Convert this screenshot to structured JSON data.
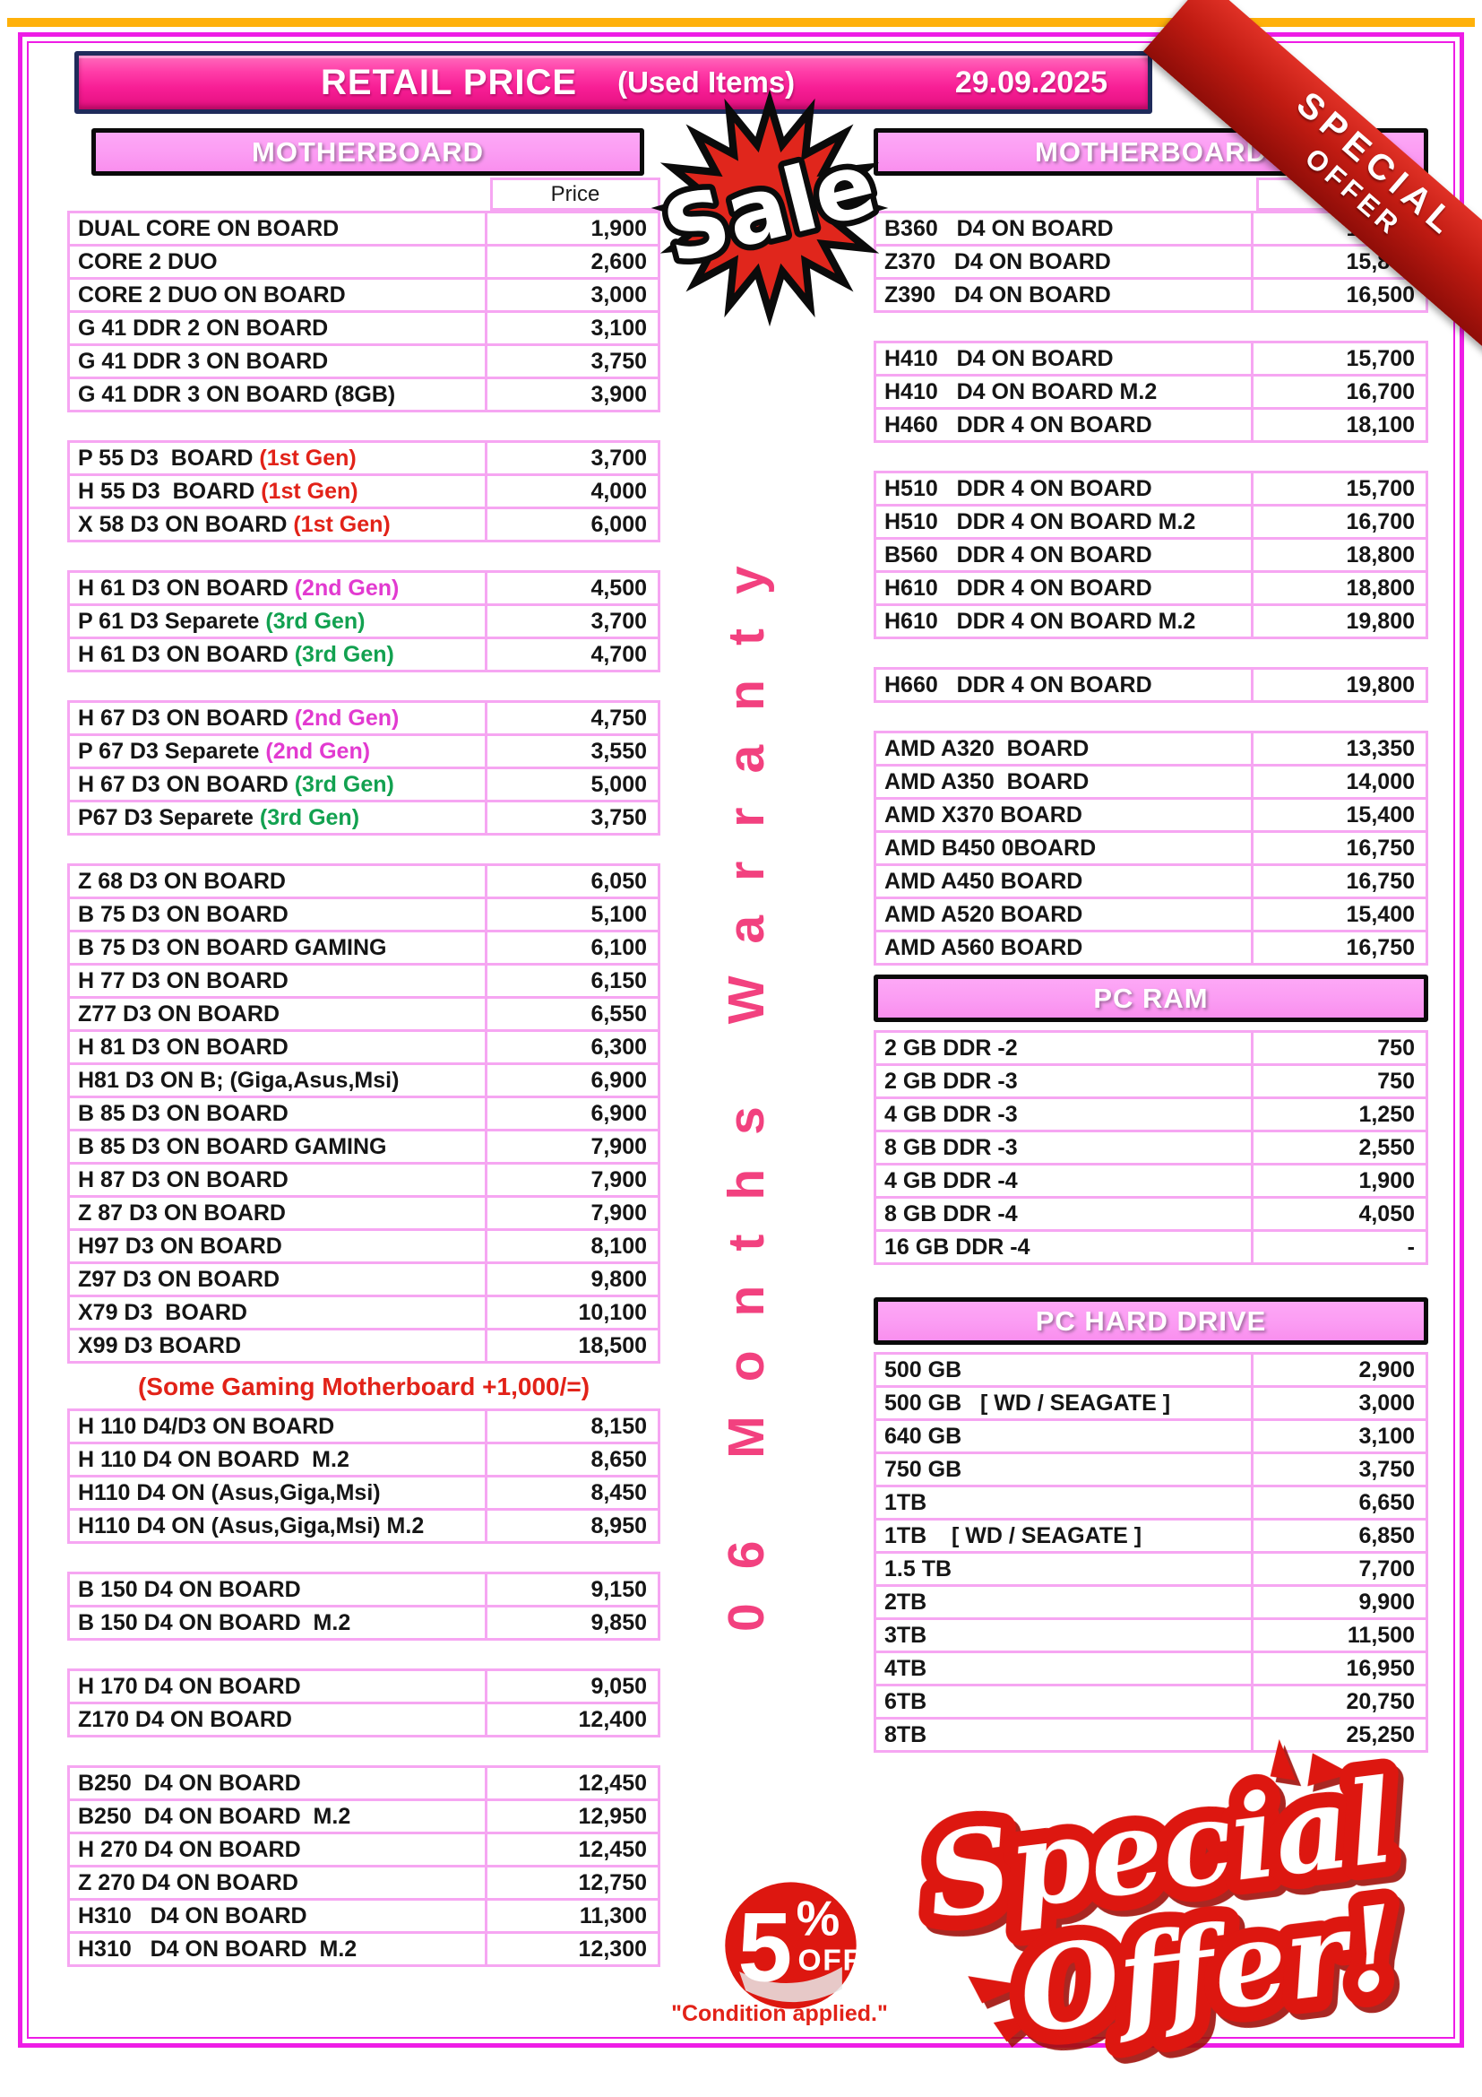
{
  "colors": {
    "red": "#e22218",
    "magenta": "#e23ad0",
    "green": "#12a150",
    "accent_pink": "#f71e95",
    "row_border_pink": "#f6a6f2",
    "section_header_pink": "#fb9cf3",
    "frame_magenta": "#ee1ce6",
    "top_line_orange": "#ffb10a",
    "warranty_pink": "#f2417f",
    "ribbon_red": "#c01b12",
    "badge_red": "#dd1710"
  },
  "page": {
    "title": "RETAIL PRICE",
    "subtitle": "(Used Items)",
    "date": "29.09.2025",
    "ribbon_line1": "SPECIAL",
    "ribbon_line2": "OFFER",
    "sale_text": "Sale",
    "warranty_text": "06 Months Warranty",
    "discount_number": "5",
    "discount_percent": "%",
    "discount_off": "OFF",
    "discount_condition": "\"Condition applied.\"",
    "special_offer_line1": "Special",
    "special_offer_line2": "Offer!"
  },
  "left": {
    "title": "MOTHERBOARD",
    "price_header": "Price",
    "note": "(Some Gaming Motherboard +1,000/=)",
    "groups_a": [
      {
        "rows": [
          {
            "name": "DUAL CORE ON BOARD",
            "tag": "",
            "tag_color": "",
            "price": "1,900"
          },
          {
            "name": "CORE 2 DUO",
            "tag": "",
            "tag_color": "",
            "price": "2,600"
          },
          {
            "name": "CORE 2 DUO ON BOARD",
            "tag": "",
            "tag_color": "",
            "price": "3,000"
          },
          {
            "name": "G 41 DDR 2 ON BOARD",
            "tag": "",
            "tag_color": "",
            "price": "3,100"
          },
          {
            "name": "G 41 DDR 3 ON BOARD",
            "tag": "",
            "tag_color": "",
            "price": "3,750"
          },
          {
            "name": "G 41 DDR 3 ON BOARD (8GB)",
            "tag": "",
            "tag_color": "",
            "price": "3,900"
          }
        ]
      },
      {
        "rows": [
          {
            "name": "P 55 D3  BOARD ",
            "tag": "(1st Gen)",
            "tag_color": "red",
            "price": "3,700"
          },
          {
            "name": "H 55 D3  BOARD ",
            "tag": "(1st Gen)",
            "tag_color": "red",
            "price": "4,000"
          },
          {
            "name": "X 58 D3 ON BOARD ",
            "tag": "(1st Gen)",
            "tag_color": "red",
            "price": "6,000"
          }
        ]
      },
      {
        "rows": [
          {
            "name": "H 61 D3 ON BOARD ",
            "tag": "(2nd Gen)",
            "tag_color": "magenta",
            "price": "4,500"
          },
          {
            "name": "P 61 D3 Separete ",
            "tag": "(3rd Gen)",
            "tag_color": "green",
            "price": "3,700"
          },
          {
            "name": "H 61 D3 ON BOARD ",
            "tag": "(3rd Gen)",
            "tag_color": "green",
            "price": "4,700"
          }
        ]
      },
      {
        "rows": [
          {
            "name": "H 67 D3 ON BOARD ",
            "tag": "(2nd Gen)",
            "tag_color": "magenta",
            "price": "4,750"
          },
          {
            "name": "P 67 D3 Separete ",
            "tag": "(2nd Gen)",
            "tag_color": "magenta",
            "price": "3,550"
          },
          {
            "name": "H 67 D3 ON BOARD ",
            "tag": "(3rd Gen)",
            "tag_color": "green",
            "price": "5,000"
          },
          {
            "name": "P67 D3 Separete ",
            "tag": "(3rd Gen)",
            "tag_color": "green",
            "price": "3,750"
          }
        ]
      },
      {
        "rows": [
          {
            "name": "Z 68 D3 ON BOARD",
            "tag": "",
            "tag_color": "",
            "price": "6,050"
          },
          {
            "name": "B 75 D3 ON BOARD",
            "tag": "",
            "tag_color": "",
            "price": "5,100"
          },
          {
            "name": "B 75 D3 ON BOARD GAMING",
            "tag": "",
            "tag_color": "",
            "price": "6,100"
          },
          {
            "name": "H 77 D3 ON BOARD",
            "tag": "",
            "tag_color": "",
            "price": "6,150"
          },
          {
            "name": "Z77 D3 ON BOARD",
            "tag": "",
            "tag_color": "",
            "price": "6,550"
          },
          {
            "name": "H 81 D3 ON BOARD",
            "tag": "",
            "tag_color": "",
            "price": "6,300"
          },
          {
            "name": "H81 D3 ON B; (Giga,Asus,Msi)",
            "tag": "",
            "tag_color": "",
            "price": "6,900"
          },
          {
            "name": "B 85 D3 ON BOARD",
            "tag": "",
            "tag_color": "",
            "price": "6,900"
          },
          {
            "name": "B 85 D3 ON BOARD GAMING",
            "tag": "",
            "tag_color": "",
            "price": "7,900"
          },
          {
            "name": "H 87 D3 ON BOARD",
            "tag": "",
            "tag_color": "",
            "price": "7,900"
          },
          {
            "name": "Z 87 D3 ON BOARD",
            "tag": "",
            "tag_color": "",
            "price": "7,900"
          },
          {
            "name": "H97 D3 ON BOARD",
            "tag": "",
            "tag_color": "",
            "price": "8,100"
          },
          {
            "name": "Z97 D3 ON BOARD",
            "tag": "",
            "tag_color": "",
            "price": "9,800"
          },
          {
            "name": "X79 D3  BOARD",
            "tag": "",
            "tag_color": "",
            "price": "10,100"
          },
          {
            "name": "X99 D3 BOARD",
            "tag": "",
            "tag_color": "",
            "price": "18,500"
          }
        ]
      }
    ],
    "groups_b": [
      {
        "rows": [
          {
            "name": "H 110 D4/D3 ON BOARD",
            "tag": "",
            "tag_color": "",
            "price": "8,150"
          },
          {
            "name": "H 110 D4 ON BOARD  M.2",
            "tag": "",
            "tag_color": "",
            "price": "8,650"
          },
          {
            "name": "H110 D4 ON (Asus,Giga,Msi)",
            "tag": "",
            "tag_color": "",
            "price": "8,450"
          },
          {
            "name": "H110 D4 ON (Asus,Giga,Msi) M.2",
            "tag": "",
            "tag_color": "",
            "price": "8,950"
          }
        ]
      },
      {
        "rows": [
          {
            "name": "B 150 D4 ON BOARD",
            "tag": "",
            "tag_color": "",
            "price": "9,150"
          },
          {
            "name": "B 150 D4 ON BOARD  M.2",
            "tag": "",
            "tag_color": "",
            "price": "9,850"
          }
        ]
      },
      {
        "rows": [
          {
            "name": "H 170 D4 ON BOARD",
            "tag": "",
            "tag_color": "",
            "price": "9,050"
          },
          {
            "name": "Z170 D4 ON BOARD",
            "tag": "",
            "tag_color": "",
            "price": "12,400"
          }
        ]
      },
      {
        "rows": [
          {
            "name": "B250  D4 ON BOARD",
            "tag": "",
            "tag_color": "",
            "price": "12,450"
          },
          {
            "name": "B250  D4 ON BOARD  M.2",
            "tag": "",
            "tag_color": "",
            "price": "12,950"
          },
          {
            "name": "H 270 D4 ON BOARD",
            "tag": "",
            "tag_color": "",
            "price": "12,450"
          },
          {
            "name": "Z 270 D4 ON BOARD",
            "tag": "",
            "tag_color": "",
            "price": "12,750"
          },
          {
            "name": "H310   D4 ON BOARD",
            "tag": "",
            "tag_color": "",
            "price": "11,300"
          },
          {
            "name": "H310   D4 ON BOARD  M.2",
            "tag": "",
            "tag_color": "",
            "price": "12,300"
          }
        ]
      }
    ]
  },
  "right": {
    "title": "MOTHERBOARD",
    "price_header": "Price",
    "ram_title": "PC RAM",
    "hdd_title": "PC HARD DRIVE",
    "mb_groups": [
      {
        "rows": [
          {
            "name": "B360   D4 ON BOARD",
            "tag": "",
            "tag_color": "",
            "price": "14,450"
          },
          {
            "name": "Z370   D4 ON BOARD",
            "tag": "",
            "tag_color": "",
            "price": "15,850"
          },
          {
            "name": "Z390   D4 ON BOARD",
            "tag": "",
            "tag_color": "",
            "price": "16,500"
          }
        ]
      },
      {
        "rows": [
          {
            "name": "H410   D4 ON BOARD",
            "tag": "",
            "tag_color": "",
            "price": "15,700"
          },
          {
            "name": "H410   D4 ON BOARD M.2",
            "tag": "",
            "tag_color": "",
            "price": "16,700"
          },
          {
            "name": "H460   DDR 4 ON BOARD",
            "tag": "",
            "tag_color": "",
            "price": "18,100"
          }
        ]
      },
      {
        "rows": [
          {
            "name": "H510   DDR 4 ON BOARD",
            "tag": "",
            "tag_color": "",
            "price": "15,700"
          },
          {
            "name": "H510   DDR 4 ON BOARD M.2",
            "tag": "",
            "tag_color": "",
            "price": "16,700"
          },
          {
            "name": "B560   DDR 4 ON BOARD",
            "tag": "",
            "tag_color": "",
            "price": "18,800"
          },
          {
            "name": "H610   DDR 4 ON BOARD",
            "tag": "",
            "tag_color": "",
            "price": "18,800"
          },
          {
            "name": "H610   DDR 4 ON BOARD M.2",
            "tag": "",
            "tag_color": "",
            "price": "19,800"
          }
        ]
      },
      {
        "rows": [
          {
            "name": "H660   DDR 4 ON BOARD",
            "tag": "",
            "tag_color": "",
            "price": "19,800"
          }
        ]
      },
      {
        "rows": [
          {
            "name": "AMD A320  BOARD",
            "tag": "",
            "tag_color": "",
            "price": "13,350"
          },
          {
            "name": "AMD A350  BOARD",
            "tag": "",
            "tag_color": "",
            "price": "14,000"
          },
          {
            "name": "AMD X370 BOARD",
            "tag": "",
            "tag_color": "",
            "price": "15,400"
          },
          {
            "name": "AMD B450 0BOARD",
            "tag": "",
            "tag_color": "",
            "price": "16,750"
          },
          {
            "name": "AMD A450 BOARD",
            "tag": "",
            "tag_color": "",
            "price": "16,750"
          },
          {
            "name": "AMD A520 BOARD",
            "tag": "",
            "tag_color": "",
            "price": "15,400"
          },
          {
            "name": "AMD A560 BOARD",
            "tag": "",
            "tag_color": "",
            "price": "16,750"
          }
        ]
      }
    ],
    "ram_groups": [
      {
        "rows": [
          {
            "name": "2 GB DDR -2",
            "tag": "",
            "tag_color": "",
            "price": "750"
          },
          {
            "name": "2 GB DDR -3",
            "tag": "",
            "tag_color": "",
            "price": "750"
          },
          {
            "name": "4 GB DDR -3",
            "tag": "",
            "tag_color": "",
            "price": "1,250"
          },
          {
            "name": "8 GB DDR -3",
            "tag": "",
            "tag_color": "",
            "price": "2,550"
          },
          {
            "name": "4 GB DDR -4",
            "tag": "",
            "tag_color": "",
            "price": "1,900"
          },
          {
            "name": "8 GB DDR -4",
            "tag": "",
            "tag_color": "",
            "price": "4,050"
          },
          {
            "name": "16 GB DDR -4",
            "tag": "",
            "tag_color": "",
            "price": "-"
          }
        ]
      }
    ],
    "hdd_groups": [
      {
        "rows": [
          {
            "name": "500 GB",
            "tag": "",
            "tag_color": "",
            "price": "2,900"
          },
          {
            "name": "500 GB   [ WD / SEAGATE ]",
            "tag": "",
            "tag_color": "",
            "price": "3,000"
          },
          {
            "name": "640 GB",
            "tag": "",
            "tag_color": "",
            "price": "3,100"
          },
          {
            "name": "750 GB",
            "tag": "",
            "tag_color": "",
            "price": "3,750"
          },
          {
            "name": "1TB",
            "tag": "",
            "tag_color": "",
            "price": "6,650"
          },
          {
            "name": "1TB    [ WD / SEAGATE ]",
            "tag": "",
            "tag_color": "",
            "price": "6,850"
          },
          {
            "name": "1.5 TB",
            "tag": "",
            "tag_color": "",
            "price": "7,700"
          },
          {
            "name": "2TB",
            "tag": "",
            "tag_color": "",
            "price": "9,900"
          },
          {
            "name": "3TB",
            "tag": "",
            "tag_color": "",
            "price": "11,500"
          },
          {
            "name": "4TB",
            "tag": "",
            "tag_color": "",
            "price": "16,950"
          },
          {
            "name": "6TB",
            "tag": "",
            "tag_color": "",
            "price": "20,750"
          },
          {
            "name": "8TB",
            "tag": "",
            "tag_color": "",
            "price": "25,250"
          }
        ]
      }
    ]
  }
}
